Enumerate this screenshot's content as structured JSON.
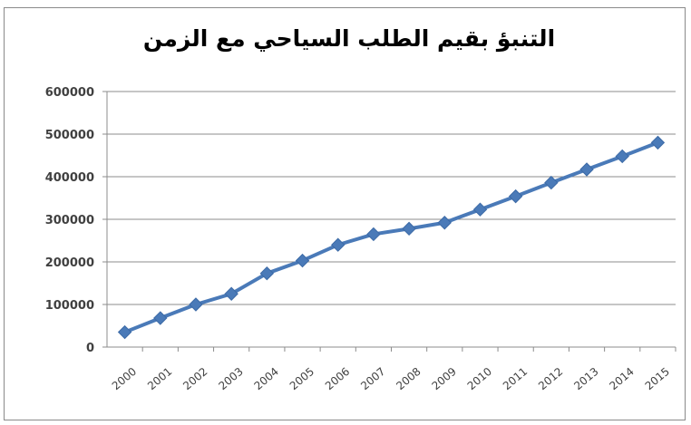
{
  "chart_data": {
    "type": "line",
    "title": "التنبؤ بقيم الطلب السياحي مع الزمن",
    "xlabel": "",
    "ylabel": "",
    "categories": [
      "2000",
      "2001",
      "2002",
      "2003",
      "2004",
      "2005",
      "2006",
      "2007",
      "2008",
      "2009",
      "2010",
      "2011",
      "2012",
      "2013",
      "2014",
      "2015"
    ],
    "series": [
      {
        "values": [
          35000,
          68000,
          100000,
          125000,
          173000,
          203000,
          240000,
          265000,
          278000,
          292000,
          323000,
          354000,
          386000,
          417000,
          448000,
          480000
        ]
      }
    ],
    "ylim": [
      0,
      600000
    ],
    "yticks": [
      "0",
      "100000",
      "200000",
      "300000",
      "400000",
      "500000",
      "600000"
    ],
    "grid": "horizontal",
    "legend": "none",
    "marker": "diamond",
    "line_color": "#4a7ab8"
  }
}
